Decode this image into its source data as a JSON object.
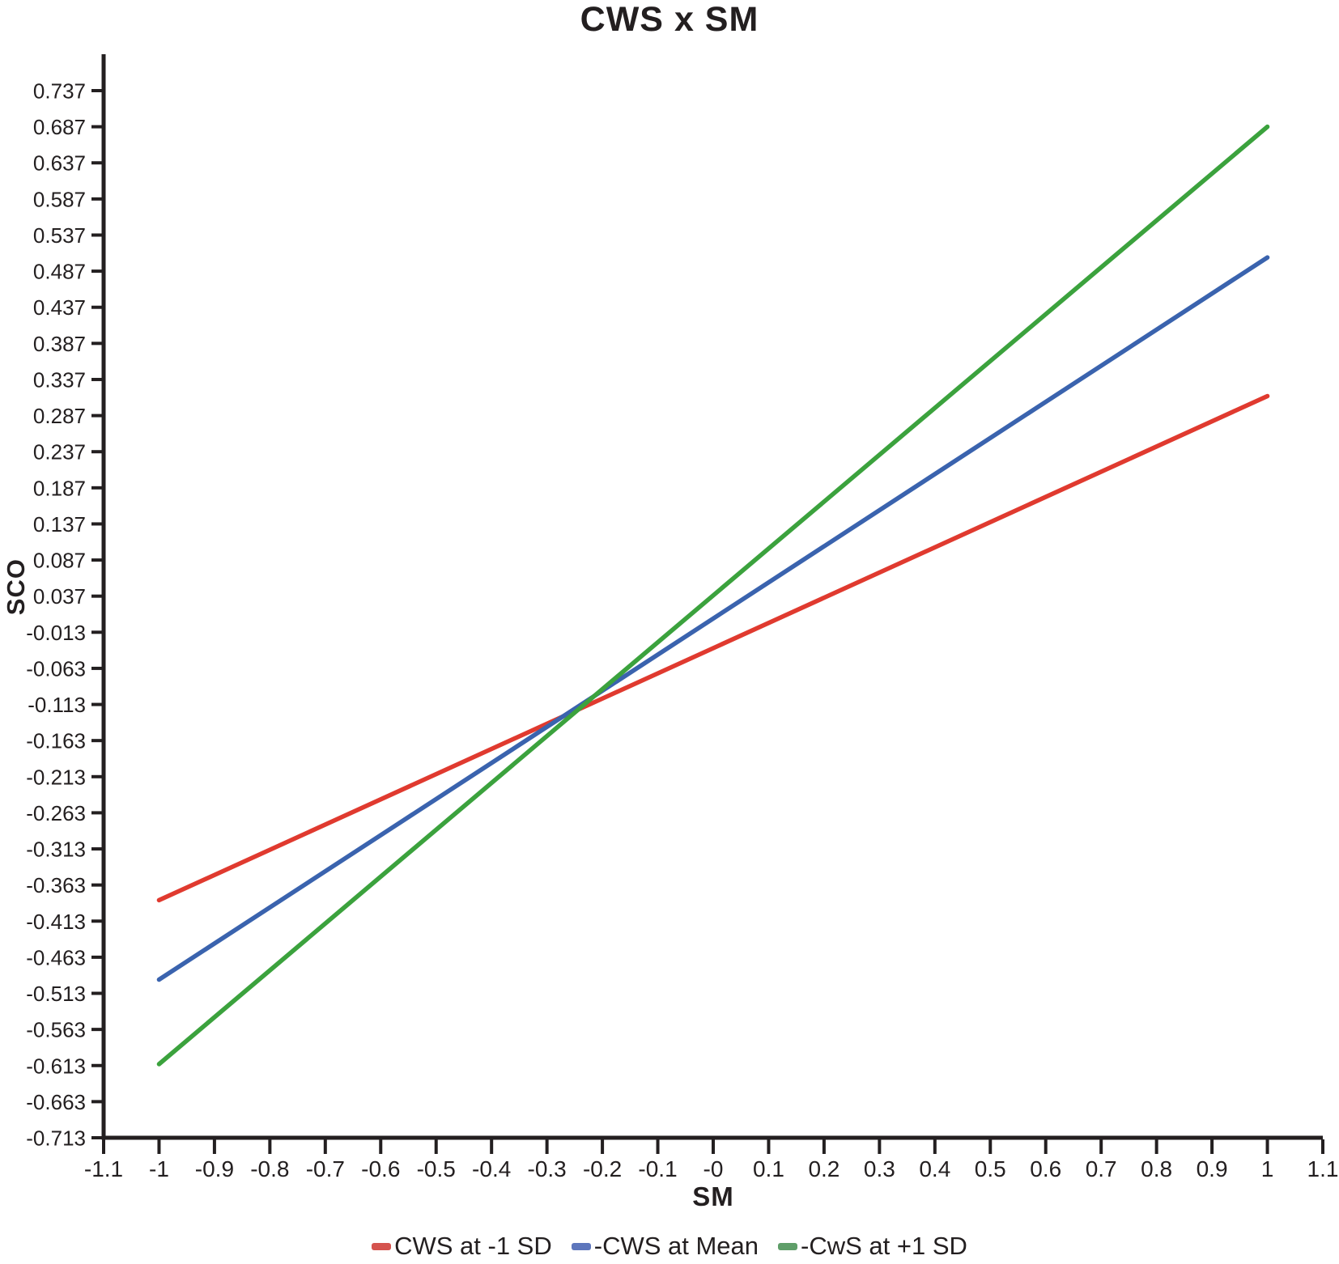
{
  "page": {
    "background": "#ffffff",
    "axis_color": "#231f20",
    "text_color": "#231f20"
  },
  "chart_data": {
    "type": "line",
    "title": "CWS x SM",
    "xlabel": "SM",
    "ylabel": "SCO",
    "xlim": [
      -1.1,
      1.1
    ],
    "ylim": [
      -0.713,
      0.737
    ],
    "grid": false,
    "legend_position": "bottom",
    "x_tick_labels": [
      "-1.1",
      "-1",
      "-0.9",
      "-0.8",
      "-0.7",
      "-0.6",
      "-0.5",
      "-0.4",
      "-0.3",
      "-0.2",
      "-0.1",
      "-0",
      "0.1",
      "0.2",
      "0.3",
      "0.4",
      "0.5",
      "0.6",
      "0.7",
      "0.8",
      "0.9",
      "1",
      "1.1"
    ],
    "y_tick_labels": [
      "0.737",
      "0.687",
      "0.637",
      "0.587",
      "0.537",
      "0.487",
      "0.437",
      "0.387",
      "0.337",
      "0.287",
      "0.237",
      "0.187",
      "0.137",
      "0.087",
      "0.037",
      "-0.013",
      "-0.063",
      "-0.113",
      "-0.163",
      "-0.213",
      "-0.263",
      "-0.313",
      "-0.363",
      "-0.413",
      "-0.463",
      "-0.513",
      "-0.563",
      "-0.613",
      "-0.663",
      "-0.713"
    ],
    "series": [
      {
        "name": "CWS at -1 SD",
        "color": "#e03a2f",
        "swatch_color": "#d5534e",
        "x": [
          -1,
          1
        ],
        "y": [
          -0.384,
          0.314
        ]
      },
      {
        "name": "-CWS at Mean",
        "color": "#3a63ae",
        "swatch_color": "#5d76bc",
        "x": [
          -1,
          1
        ],
        "y": [
          -0.494,
          0.506
        ]
      },
      {
        "name": "-CwS at +1 SD",
        "color": "#3ba23d",
        "swatch_color": "#5f9e69",
        "x": [
          -1,
          1
        ],
        "y": [
          -0.611,
          0.687
        ]
      }
    ]
  }
}
